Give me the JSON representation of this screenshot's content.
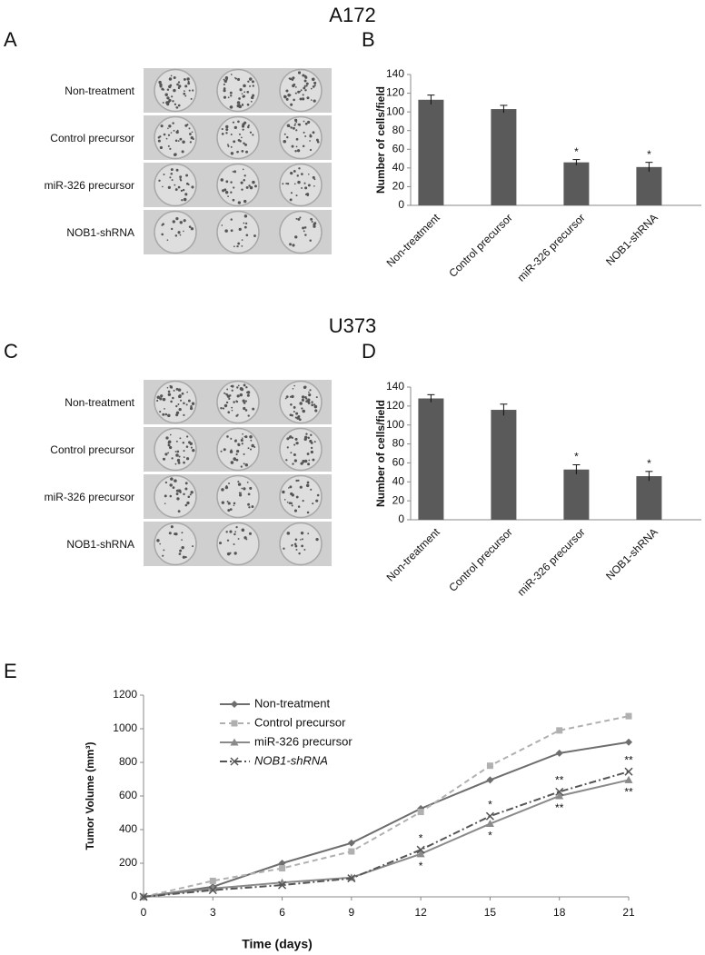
{
  "figure": {
    "panel_labels": [
      "A",
      "B",
      "C",
      "D",
      "E"
    ],
    "cell_lines": [
      "A172",
      "U373"
    ],
    "plate_labels_a": [
      "Non-treatment",
      "Control precursor",
      "miR-326 precursor",
      "NOB1-shRNA"
    ],
    "plate_labels_c": [
      "Non-treatment",
      "Control precursor",
      "miR-326 precursor",
      "NOB1-shRNA"
    ]
  },
  "chart_data": [
    {
      "type": "bar",
      "y_label": "Number of cells/field",
      "categories": [
        "Non-treatment",
        "Control precursor",
        "miR-326 precursor",
        "NOB1-shRNA"
      ],
      "values": [
        113,
        103,
        46,
        41
      ],
      "errors": [
        5,
        4,
        3,
        5
      ],
      "significance": [
        null,
        null,
        "*",
        "*"
      ],
      "color": "#5a5a5a",
      "ylim": [
        0,
        140
      ],
      "yticks": [
        0,
        20,
        40,
        60,
        80,
        100,
        120,
        140
      ]
    },
    {
      "type": "bar",
      "y_label": "Number of cells/field",
      "categories": [
        "Non-treatment",
        "Control precursor",
        "miR-326 precursor",
        "NOB1-shRNA"
      ],
      "values": [
        128,
        116,
        53,
        46
      ],
      "errors": [
        4,
        6,
        5,
        5
      ],
      "significance": [
        null,
        null,
        "*",
        "*"
      ],
      "color": "#5a5a5a",
      "ylim": [
        0,
        140
      ],
      "yticks": [
        0,
        20,
        40,
        60,
        80,
        100,
        120,
        140
      ]
    },
    {
      "type": "line",
      "x_label": "Time (days)",
      "y_label": "Tumor Volume (mm³)",
      "x": [
        0,
        3,
        6,
        9,
        12,
        15,
        18,
        21
      ],
      "xlim": [
        0,
        21
      ],
      "xticks": [
        0,
        3,
        6,
        9,
        12,
        15,
        18,
        21
      ],
      "ylim": [
        0,
        1200
      ],
      "yticks": [
        0,
        200,
        400,
        600,
        800,
        1000,
        1200
      ],
      "series": [
        {
          "name": "Non-treatment",
          "color": "#6e6e6e",
          "marker": "diamond",
          "dash": "solid",
          "values": [
            0,
            60,
            200,
            320,
            525,
            695,
            855,
            920
          ]
        },
        {
          "name": "Control precursor",
          "color": "#b0b0b0",
          "marker": "square",
          "dash": "dashed",
          "values": [
            0,
            95,
            170,
            270,
            505,
            780,
            990,
            1075
          ]
        },
        {
          "name": "miR-326 precursor",
          "color": "#8a8a8a",
          "marker": "triangle",
          "dash": "solid",
          "values": [
            0,
            50,
            85,
            115,
            255,
            435,
            600,
            695
          ]
        },
        {
          "name": "NOB1-shRNA",
          "color": "#555555",
          "marker": "x",
          "dash": "dashdot",
          "values": [
            0,
            40,
            70,
            110,
            280,
            480,
            625,
            745
          ]
        }
      ],
      "significance_above": [
        null,
        null,
        null,
        null,
        "*",
        "*",
        "**",
        "**"
      ],
      "significance_below": [
        null,
        null,
        null,
        null,
        "*",
        "*",
        "**",
        "**"
      ]
    }
  ]
}
